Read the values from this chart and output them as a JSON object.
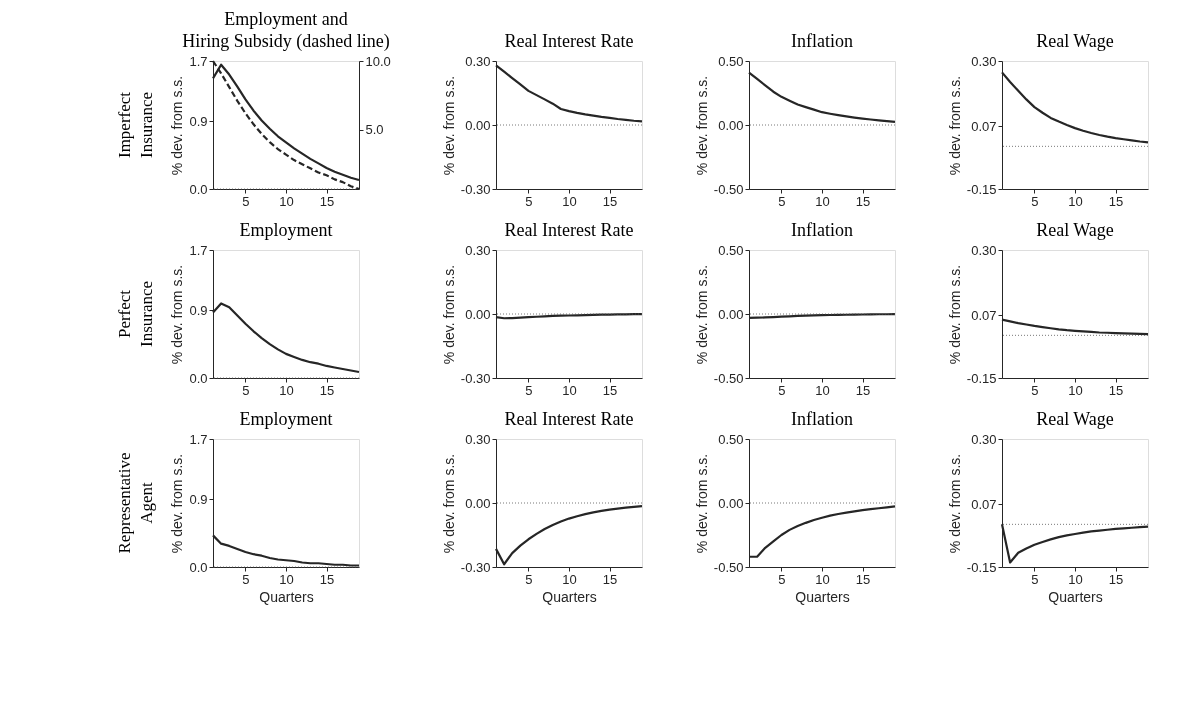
{
  "chart_data": [
    {
      "type": "line",
      "title": "Employment and\nHiring Subsidy (dashed line)",
      "ylabel": "% dev. from s.s.",
      "annotations": [
        "Imperfect\nInsurance"
      ],
      "x": [
        1,
        2,
        3,
        4,
        5,
        6,
        7,
        8,
        9,
        10,
        11,
        12,
        13,
        14,
        15,
        16,
        17,
        18,
        19
      ],
      "xlim": [
        1,
        19
      ],
      "xticks": [
        5,
        10,
        15
      ],
      "ylim": [
        0,
        1.7
      ],
      "yticks": [
        {
          "value": 0,
          "label": "0.0"
        },
        0.9,
        1.7
      ],
      "y2lim": [
        0.7,
        10
      ],
      "y2ticks": [
        {
          "value": 5,
          "label": "5.0"
        },
        {
          "value": 10,
          "label": "10.0"
        }
      ],
      "ref_lines": [
        {
          "axis": "y",
          "value": 0,
          "line_style": "dotted"
        }
      ],
      "series": [
        {
          "color": "#262626",
          "line_style": "solid",
          "values": [
            1.47,
            1.65,
            1.52,
            1.36,
            1.19,
            1.04,
            0.91,
            0.8,
            0.7,
            0.62,
            0.54,
            0.47,
            0.4,
            0.34,
            0.28,
            0.23,
            0.19,
            0.15,
            0.12
          ]
        },
        {
          "color": "#262626",
          "line_style": "dashed",
          "axis": "y2",
          "values": [
            10.0,
            9.1,
            8.1,
            7.1,
            6.2,
            5.4,
            4.7,
            4.1,
            3.6,
            3.2,
            2.8,
            2.5,
            2.2,
            1.9,
            1.7,
            1.4,
            1.2,
            0.9,
            0.7
          ]
        }
      ]
    },
    {
      "type": "line",
      "title": "Real Interest Rate",
      "ylabel": "% dev. from s.s.",
      "x": [
        1,
        2,
        3,
        4,
        5,
        6,
        7,
        8,
        9,
        10,
        11,
        12,
        13,
        14,
        15,
        16,
        17,
        18,
        19
      ],
      "xlim": [
        1,
        19
      ],
      "xticks": [
        5,
        10,
        15
      ],
      "ylim": [
        -0.3,
        0.3
      ],
      "yticks": [
        {
          "value": -0.3,
          "label": "-0.30"
        },
        {
          "value": 0,
          "label": "0.00"
        },
        {
          "value": 0.3,
          "label": "0.30"
        }
      ],
      "ref_lines": [
        {
          "axis": "y",
          "value": 0,
          "line_style": "dotted"
        }
      ],
      "series": [
        {
          "color": "#262626",
          "values": [
            0.28,
            0.25,
            0.22,
            0.19,
            0.16,
            0.14,
            0.12,
            0.1,
            0.075,
            0.065,
            0.057,
            0.05,
            0.044,
            0.038,
            0.033,
            0.028,
            0.024,
            0.02,
            0.017
          ]
        }
      ]
    },
    {
      "type": "line",
      "title": "Inflation",
      "ylabel": "% dev. from s.s.",
      "x": [
        1,
        2,
        3,
        4,
        5,
        6,
        7,
        8,
        9,
        10,
        11,
        12,
        13,
        14,
        15,
        16,
        17,
        18,
        19
      ],
      "xlim": [
        1,
        19
      ],
      "xticks": [
        5,
        10,
        15
      ],
      "ylim": [
        -0.5,
        0.5
      ],
      "yticks": [
        {
          "value": -0.5,
          "label": "-0.50"
        },
        {
          "value": 0,
          "label": "0.00"
        },
        {
          "value": 0.5,
          "label": "0.50"
        }
      ],
      "ref_lines": [
        {
          "axis": "y",
          "value": 0,
          "line_style": "dotted"
        }
      ],
      "series": [
        {
          "color": "#262626",
          "values": [
            0.41,
            0.36,
            0.31,
            0.26,
            0.22,
            0.19,
            0.16,
            0.14,
            0.12,
            0.1,
            0.088,
            0.077,
            0.067,
            0.058,
            0.05,
            0.043,
            0.036,
            0.03,
            0.024
          ]
        }
      ]
    },
    {
      "type": "line",
      "title": "Real Wage",
      "ylabel": "% dev. from s.s.",
      "x": [
        1,
        2,
        3,
        4,
        5,
        6,
        7,
        8,
        9,
        10,
        11,
        12,
        13,
        14,
        15,
        16,
        17,
        18,
        19
      ],
      "xlim": [
        1,
        19
      ],
      "xticks": [
        5,
        10,
        15
      ],
      "ylim": [
        -0.15,
        0.3
      ],
      "yticks": [
        {
          "value": -0.15,
          "label": "-0.15"
        },
        0.07,
        {
          "value": 0.3,
          "label": "0.30"
        }
      ],
      "ref_lines": [
        {
          "axis": "y",
          "value": 0,
          "line_style": "dotted"
        }
      ],
      "series": [
        {
          "color": "#262626",
          "values": [
            0.26,
            0.226,
            0.195,
            0.165,
            0.138,
            0.118,
            0.1,
            0.087,
            0.075,
            0.064,
            0.055,
            0.047,
            0.04,
            0.034,
            0.029,
            0.025,
            0.021,
            0.017,
            0.014
          ]
        }
      ]
    },
    {
      "type": "line",
      "title": "Employment",
      "ylabel": "% dev. from s.s.",
      "annotations": [
        "Perfect\nInsurance"
      ],
      "x": [
        1,
        2,
        3,
        4,
        5,
        6,
        7,
        8,
        9,
        10,
        11,
        12,
        13,
        14,
        15,
        16,
        17,
        18,
        19
      ],
      "xlim": [
        1,
        19
      ],
      "xticks": [
        5,
        10,
        15
      ],
      "ylim": [
        0,
        1.7
      ],
      "yticks": [
        {
          "value": 0,
          "label": "0.0"
        },
        0.9,
        1.7
      ],
      "ref_lines": [
        {
          "axis": "y",
          "value": 0,
          "line_style": "dotted"
        }
      ],
      "series": [
        {
          "color": "#262626",
          "values": [
            0.87,
            0.99,
            0.94,
            0.83,
            0.72,
            0.62,
            0.53,
            0.45,
            0.38,
            0.32,
            0.28,
            0.24,
            0.21,
            0.19,
            0.16,
            0.14,
            0.12,
            0.1,
            0.08
          ]
        }
      ]
    },
    {
      "type": "line",
      "title": "Real Interest Rate",
      "ylabel": "% dev. from s.s.",
      "x": [
        1,
        2,
        3,
        4,
        5,
        6,
        7,
        8,
        9,
        10,
        11,
        12,
        13,
        14,
        15,
        16,
        17,
        18,
        19
      ],
      "xlim": [
        1,
        19
      ],
      "xticks": [
        5,
        10,
        15
      ],
      "ylim": [
        -0.3,
        0.3
      ],
      "yticks": [
        {
          "value": -0.3,
          "label": "-0.30"
        },
        {
          "value": 0,
          "label": "0.00"
        },
        {
          "value": 0.3,
          "label": "0.30"
        }
      ],
      "ref_lines": [
        {
          "axis": "y",
          "value": 0,
          "line_style": "dotted"
        }
      ],
      "series": [
        {
          "color": "#262626",
          "values": [
            -0.015,
            -0.02,
            -0.019,
            -0.017,
            -0.015,
            -0.013,
            -0.011,
            -0.009,
            -0.008,
            -0.007,
            -0.006,
            -0.005,
            -0.004,
            -0.003,
            -0.003,
            -0.002,
            -0.002,
            -0.001,
            -0.001
          ]
        }
      ]
    },
    {
      "type": "line",
      "title": "Inflation",
      "ylabel": "% dev. from s.s.",
      "x": [
        1,
        2,
        3,
        4,
        5,
        6,
        7,
        8,
        9,
        10,
        11,
        12,
        13,
        14,
        15,
        16,
        17,
        18,
        19
      ],
      "xlim": [
        1,
        19
      ],
      "xticks": [
        5,
        10,
        15
      ],
      "ylim": [
        -0.5,
        0.5
      ],
      "yticks": [
        {
          "value": -0.5,
          "label": "-0.50"
        },
        {
          "value": 0,
          "label": "0.00"
        },
        {
          "value": 0.5,
          "label": "0.50"
        }
      ],
      "ref_lines": [
        {
          "axis": "y",
          "value": 0,
          "line_style": "dotted"
        }
      ],
      "series": [
        {
          "color": "#262626",
          "values": [
            -0.03,
            -0.029,
            -0.027,
            -0.024,
            -0.021,
            -0.018,
            -0.015,
            -0.013,
            -0.011,
            -0.009,
            -0.008,
            -0.007,
            -0.006,
            -0.005,
            -0.004,
            -0.003,
            -0.002,
            -0.002,
            -0.001
          ]
        }
      ]
    },
    {
      "type": "line",
      "title": "Real Wage",
      "ylabel": "% dev. from s.s.",
      "x": [
        1,
        2,
        3,
        4,
        5,
        6,
        7,
        8,
        9,
        10,
        11,
        12,
        13,
        14,
        15,
        16,
        17,
        18,
        19
      ],
      "xlim": [
        1,
        19
      ],
      "xticks": [
        5,
        10,
        15
      ],
      "ylim": [
        -0.15,
        0.3
      ],
      "yticks": [
        {
          "value": -0.15,
          "label": "-0.15"
        },
        0.07,
        {
          "value": 0.3,
          "label": "0.30"
        }
      ],
      "ref_lines": [
        {
          "axis": "y",
          "value": 0,
          "line_style": "dotted"
        }
      ],
      "series": [
        {
          "color": "#262626",
          "values": [
            0.055,
            0.049,
            0.043,
            0.038,
            0.033,
            0.029,
            0.025,
            0.021,
            0.018,
            0.016,
            0.014,
            0.012,
            0.01,
            0.009,
            0.008,
            0.007,
            0.006,
            0.005,
            0.004
          ]
        }
      ]
    },
    {
      "type": "line",
      "title": "Employment",
      "ylabel": "% dev. from s.s.",
      "xlabel": "Quarters",
      "annotations": [
        "Representative\nAgent"
      ],
      "x": [
        1,
        2,
        3,
        4,
        5,
        6,
        7,
        8,
        9,
        10,
        11,
        12,
        13,
        14,
        15,
        16,
        17,
        18,
        19
      ],
      "xlim": [
        1,
        19
      ],
      "xticks": [
        5,
        10,
        15
      ],
      "ylim": [
        0,
        1.7
      ],
      "yticks": [
        {
          "value": 0,
          "label": "0.0"
        },
        0.9,
        1.7
      ],
      "ref_lines": [
        {
          "axis": "y",
          "value": 0,
          "line_style": "dotted"
        }
      ],
      "series": [
        {
          "color": "#262626",
          "values": [
            0.42,
            0.31,
            0.28,
            0.24,
            0.2,
            0.17,
            0.15,
            0.12,
            0.1,
            0.09,
            0.08,
            0.06,
            0.05,
            0.05,
            0.04,
            0.03,
            0.03,
            0.02,
            0.02
          ]
        }
      ]
    },
    {
      "type": "line",
      "title": "Real Interest Rate",
      "ylabel": "% dev. from s.s.",
      "xlabel": "Quarters",
      "x": [
        1,
        2,
        3,
        4,
        5,
        6,
        7,
        8,
        9,
        10,
        11,
        12,
        13,
        14,
        15,
        16,
        17,
        18,
        19
      ],
      "xlim": [
        1,
        19
      ],
      "xticks": [
        5,
        10,
        15
      ],
      "ylim": [
        -0.3,
        0.3
      ],
      "yticks": [
        {
          "value": -0.3,
          "label": "-0.30"
        },
        {
          "value": 0,
          "label": "0.00"
        },
        {
          "value": 0.3,
          "label": "0.30"
        }
      ],
      "ref_lines": [
        {
          "axis": "y",
          "value": 0,
          "line_style": "dotted"
        }
      ],
      "series": [
        {
          "color": "#262626",
          "values": [
            -0.215,
            -0.287,
            -0.235,
            -0.2,
            -0.17,
            -0.145,
            -0.122,
            -0.103,
            -0.087,
            -0.073,
            -0.062,
            -0.052,
            -0.044,
            -0.037,
            -0.031,
            -0.026,
            -0.022,
            -0.018,
            -0.015
          ]
        }
      ]
    },
    {
      "type": "line",
      "title": "Inflation",
      "ylabel": "% dev. from s.s.",
      "xlabel": "Quarters",
      "x": [
        1,
        2,
        3,
        4,
        5,
        6,
        7,
        8,
        9,
        10,
        11,
        12,
        13,
        14,
        15,
        16,
        17,
        18,
        19
      ],
      "xlim": [
        1,
        19
      ],
      "xticks": [
        5,
        10,
        15
      ],
      "ylim": [
        -0.5,
        0.5
      ],
      "yticks": [
        {
          "value": -0.5,
          "label": "-0.50"
        },
        {
          "value": 0,
          "label": "0.00"
        },
        {
          "value": 0.5,
          "label": "0.50"
        }
      ],
      "ref_lines": [
        {
          "axis": "y",
          "value": 0,
          "line_style": "dotted"
        }
      ],
      "series": [
        {
          "color": "#262626",
          "values": [
            -0.42,
            -0.42,
            -0.35,
            -0.3,
            -0.25,
            -0.21,
            -0.18,
            -0.155,
            -0.133,
            -0.115,
            -0.099,
            -0.086,
            -0.075,
            -0.065,
            -0.056,
            -0.048,
            -0.041,
            -0.034,
            -0.027
          ]
        }
      ]
    },
    {
      "type": "line",
      "title": "Real Wage",
      "ylabel": "% dev. from s.s.",
      "xlabel": "Quarters",
      "x": [
        1,
        2,
        3,
        4,
        5,
        6,
        7,
        8,
        9,
        10,
        11,
        12,
        13,
        14,
        15,
        16,
        17,
        18,
        19
      ],
      "xlim": [
        1,
        19
      ],
      "xticks": [
        5,
        10,
        15
      ],
      "ylim": [
        -0.15,
        0.3
      ],
      "yticks": [
        {
          "value": -0.15,
          "label": "-0.15"
        },
        0.07,
        {
          "value": 0.3,
          "label": "0.30"
        }
      ],
      "ref_lines": [
        {
          "axis": "y",
          "value": 0,
          "line_style": "dotted"
        }
      ],
      "series": [
        {
          "color": "#262626",
          "values": [
            0.0,
            -0.134,
            -0.1,
            -0.085,
            -0.072,
            -0.062,
            -0.053,
            -0.045,
            -0.039,
            -0.034,
            -0.029,
            -0.025,
            -0.022,
            -0.019,
            -0.016,
            -0.014,
            -0.012,
            -0.01,
            -0.008
          ]
        }
      ]
    }
  ]
}
